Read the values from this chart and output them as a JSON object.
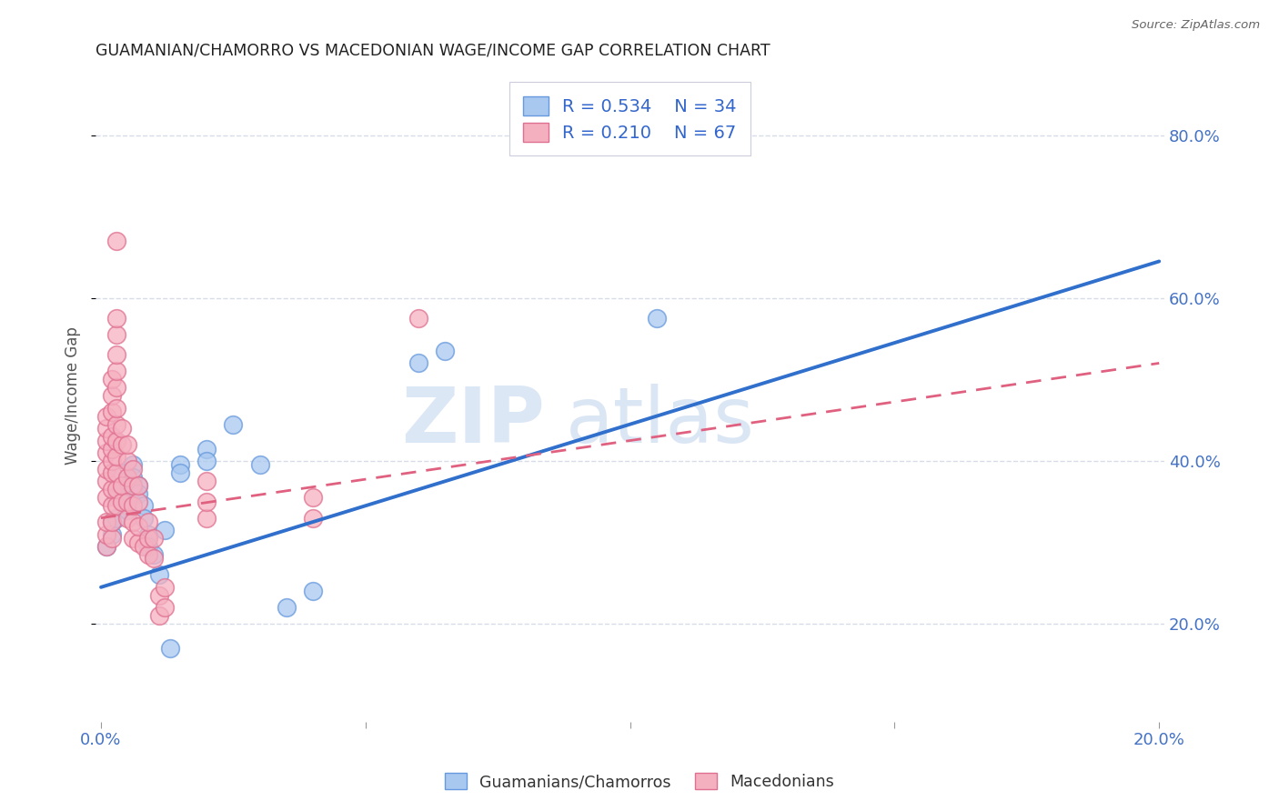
{
  "title": "GUAMANIAN/CHAMORRO VS MACEDONIAN WAGE/INCOME GAP CORRELATION CHART",
  "source": "Source: ZipAtlas.com",
  "ylabel": "Wage/Income Gap",
  "right_yticks": [
    "20.0%",
    "40.0%",
    "60.0%",
    "80.0%"
  ],
  "right_ytick_vals": [
    0.2,
    0.4,
    0.6,
    0.8
  ],
  "legend_r1": "R = 0.534",
  "legend_n1": "N = 34",
  "legend_r2": "R = 0.210",
  "legend_n2": "N = 67",
  "watermark": "ZIPatlas",
  "blue_fill": "#a8c8f0",
  "blue_edge": "#6699dd",
  "pink_fill": "#f5b0c0",
  "pink_edge": "#e07090",
  "blue_scatter": [
    [
      0.001,
      0.295
    ],
    [
      0.002,
      0.31
    ],
    [
      0.002,
      0.325
    ],
    [
      0.003,
      0.33
    ],
    [
      0.003,
      0.355
    ],
    [
      0.004,
      0.37
    ],
    [
      0.004,
      0.385
    ],
    [
      0.005,
      0.375
    ],
    [
      0.005,
      0.355
    ],
    [
      0.005,
      0.34
    ],
    [
      0.006,
      0.395
    ],
    [
      0.006,
      0.38
    ],
    [
      0.006,
      0.365
    ],
    [
      0.007,
      0.37
    ],
    [
      0.007,
      0.36
    ],
    [
      0.008,
      0.345
    ],
    [
      0.008,
      0.33
    ],
    [
      0.009,
      0.31
    ],
    [
      0.009,
      0.295
    ],
    [
      0.01,
      0.285
    ],
    [
      0.011,
      0.26
    ],
    [
      0.012,
      0.315
    ],
    [
      0.013,
      0.17
    ],
    [
      0.015,
      0.395
    ],
    [
      0.015,
      0.385
    ],
    [
      0.02,
      0.415
    ],
    [
      0.02,
      0.4
    ],
    [
      0.025,
      0.445
    ],
    [
      0.03,
      0.395
    ],
    [
      0.035,
      0.22
    ],
    [
      0.04,
      0.24
    ],
    [
      0.06,
      0.52
    ],
    [
      0.065,
      0.535
    ],
    [
      0.105,
      0.575
    ]
  ],
  "pink_scatter": [
    [
      0.001,
      0.295
    ],
    [
      0.001,
      0.31
    ],
    [
      0.001,
      0.325
    ],
    [
      0.001,
      0.355
    ],
    [
      0.001,
      0.375
    ],
    [
      0.001,
      0.39
    ],
    [
      0.001,
      0.41
    ],
    [
      0.001,
      0.425
    ],
    [
      0.001,
      0.44
    ],
    [
      0.001,
      0.455
    ],
    [
      0.002,
      0.305
    ],
    [
      0.002,
      0.325
    ],
    [
      0.002,
      0.345
    ],
    [
      0.002,
      0.365
    ],
    [
      0.002,
      0.385
    ],
    [
      0.002,
      0.4
    ],
    [
      0.002,
      0.415
    ],
    [
      0.002,
      0.43
    ],
    [
      0.002,
      0.46
    ],
    [
      0.002,
      0.48
    ],
    [
      0.002,
      0.5
    ],
    [
      0.003,
      0.345
    ],
    [
      0.003,
      0.365
    ],
    [
      0.003,
      0.385
    ],
    [
      0.003,
      0.405
    ],
    [
      0.003,
      0.425
    ],
    [
      0.003,
      0.445
    ],
    [
      0.003,
      0.465
    ],
    [
      0.003,
      0.49
    ],
    [
      0.003,
      0.51
    ],
    [
      0.003,
      0.53
    ],
    [
      0.003,
      0.555
    ],
    [
      0.003,
      0.575
    ],
    [
      0.004,
      0.35
    ],
    [
      0.004,
      0.37
    ],
    [
      0.004,
      0.42
    ],
    [
      0.004,
      0.44
    ],
    [
      0.005,
      0.33
    ],
    [
      0.005,
      0.35
    ],
    [
      0.005,
      0.38
    ],
    [
      0.005,
      0.4
    ],
    [
      0.005,
      0.42
    ],
    [
      0.006,
      0.305
    ],
    [
      0.006,
      0.325
    ],
    [
      0.006,
      0.345
    ],
    [
      0.006,
      0.37
    ],
    [
      0.006,
      0.39
    ],
    [
      0.007,
      0.3
    ],
    [
      0.007,
      0.32
    ],
    [
      0.007,
      0.35
    ],
    [
      0.007,
      0.37
    ],
    [
      0.008,
      0.295
    ],
    [
      0.009,
      0.285
    ],
    [
      0.009,
      0.305
    ],
    [
      0.009,
      0.325
    ],
    [
      0.01,
      0.28
    ],
    [
      0.01,
      0.305
    ],
    [
      0.011,
      0.21
    ],
    [
      0.011,
      0.235
    ],
    [
      0.012,
      0.22
    ],
    [
      0.012,
      0.245
    ],
    [
      0.02,
      0.33
    ],
    [
      0.02,
      0.35
    ],
    [
      0.02,
      0.375
    ],
    [
      0.04,
      0.33
    ],
    [
      0.04,
      0.355
    ],
    [
      0.06,
      0.575
    ],
    [
      0.003,
      0.67
    ]
  ],
  "blue_line_x": [
    0.0,
    0.2
  ],
  "blue_line_y": [
    0.245,
    0.645
  ],
  "pink_line_x": [
    0.0,
    0.2
  ],
  "pink_line_y": [
    0.33,
    0.52
  ],
  "xmin": -0.001,
  "xmax": 0.201,
  "ymin": 0.08,
  "ymax": 0.88,
  "grid_color": "#d8dce8",
  "grid_style": "--",
  "bg_color": "#ffffff"
}
